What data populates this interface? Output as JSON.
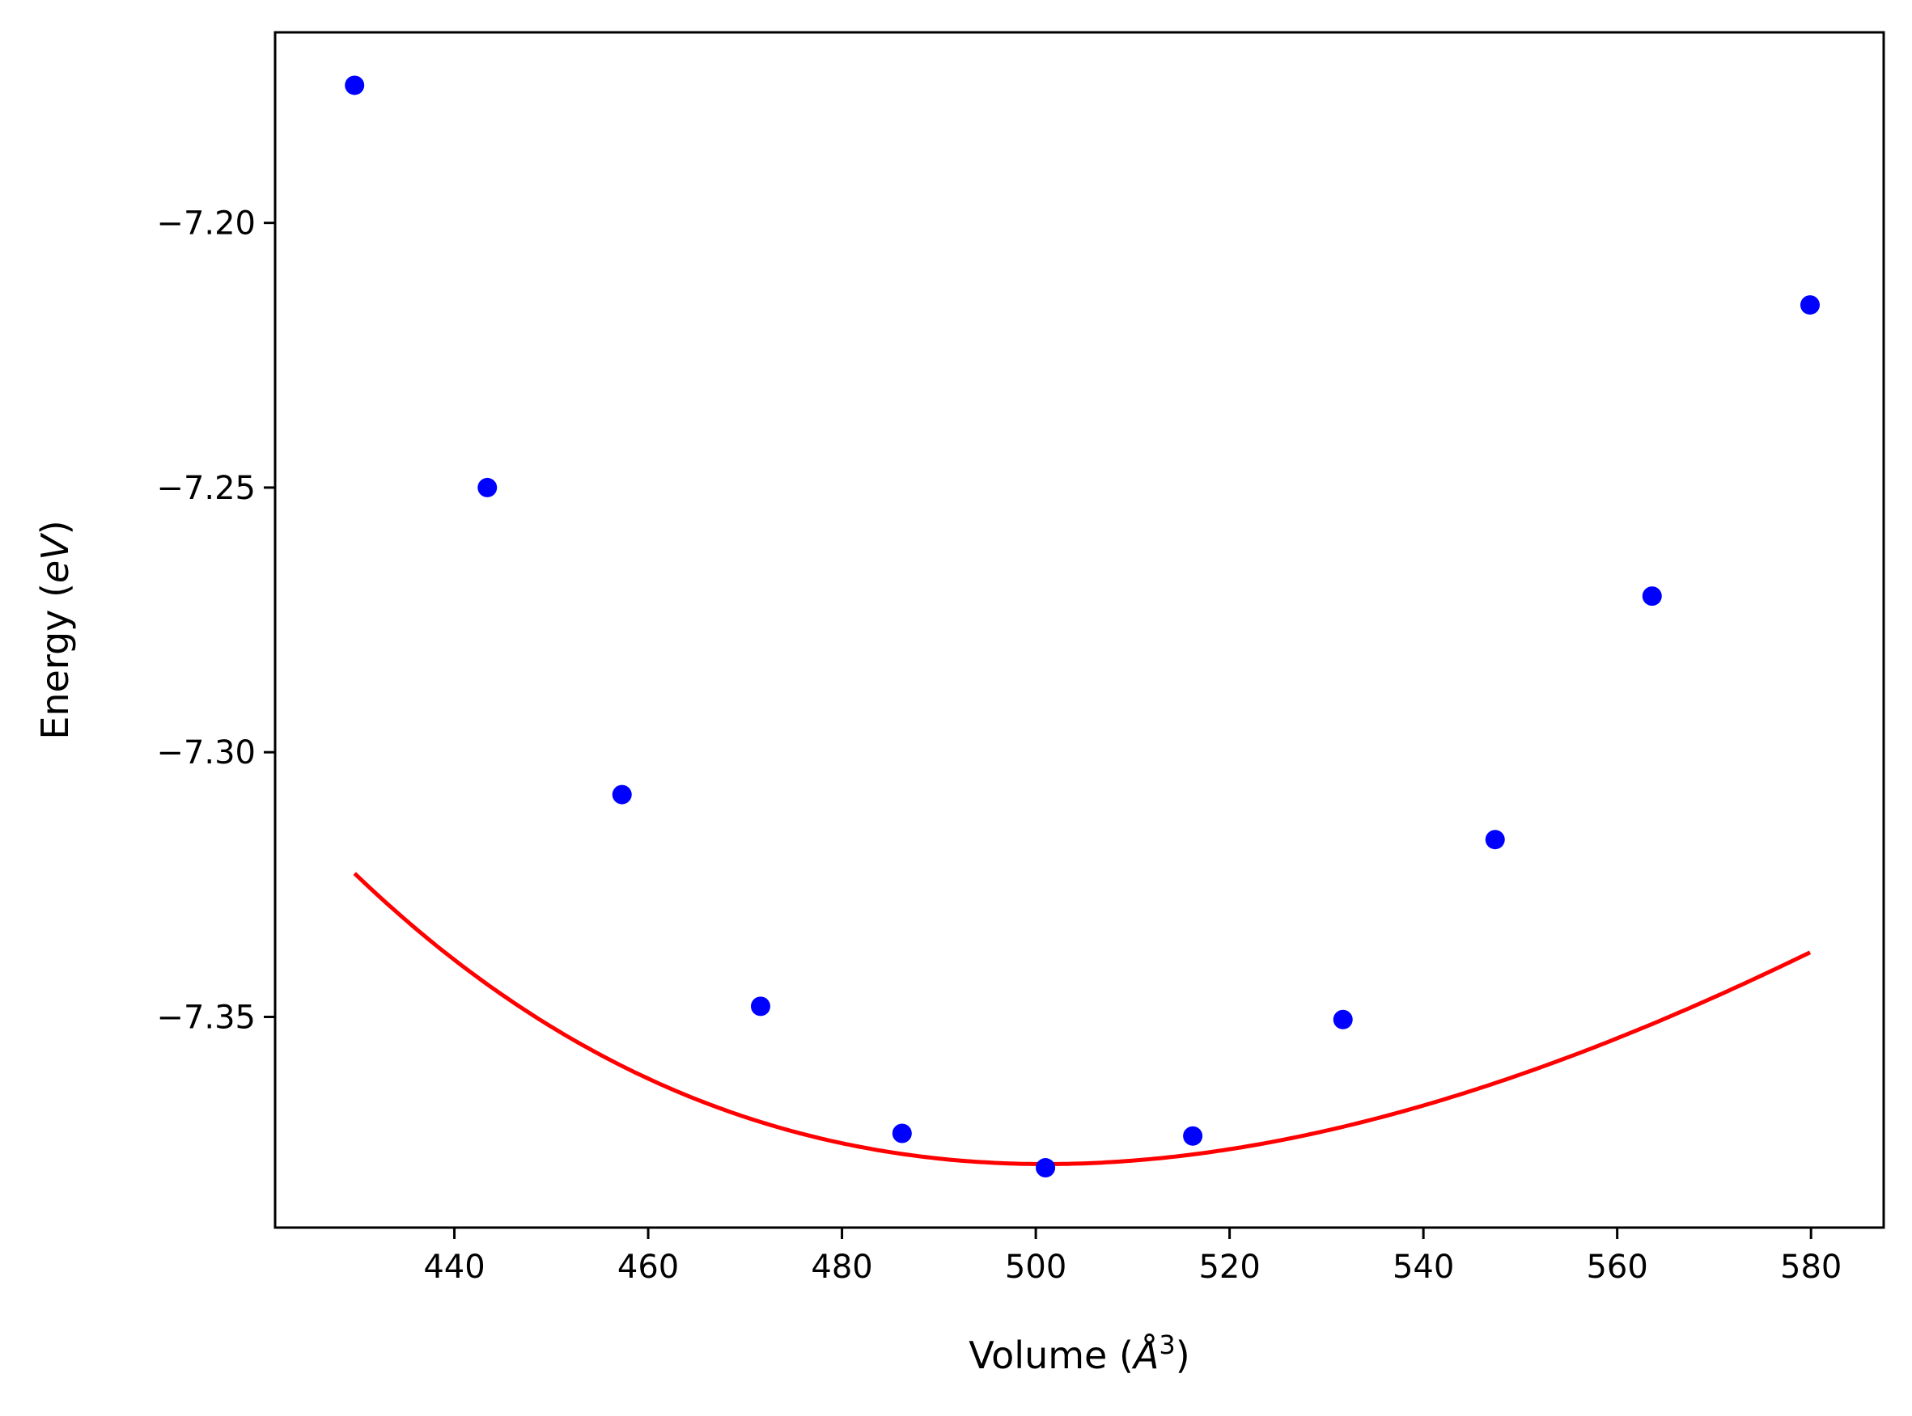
{
  "chart_data": {
    "type": "scatter",
    "title": "",
    "xlabel": "Volume",
    "xlabel_unit": "Å",
    "xlabel_unit_power": "3",
    "ylabel": "Energy",
    "ylabel_unit": "eV",
    "xlim": [
      421.5,
      587.5
    ],
    "ylim": [
      -7.3898,
      -7.164
    ],
    "grid": false,
    "legend": "none",
    "xticks": [
      440,
      460,
      480,
      500,
      520,
      540,
      560,
      580
    ],
    "xtick_labels": [
      "440",
      "460",
      "480",
      "500",
      "520",
      "540",
      "560",
      "580"
    ],
    "yticks": [
      -7.2,
      -7.25,
      -7.3,
      -7.35
    ],
    "ytick_labels": [
      "−7.20",
      "−7.25",
      "−7.30",
      "−7.35"
    ],
    "series": [
      {
        "kind": "points",
        "color": "#0000ff",
        "x": [
          429.7,
          443.4,
          457.3,
          471.6,
          486.2,
          501.0,
          516.2,
          531.7,
          547.4,
          563.6,
          579.9
        ],
        "y": [
          -7.174,
          -7.25,
          -7.308,
          -7.348,
          -7.372,
          -7.3785,
          -7.3725,
          -7.3505,
          -7.3165,
          -7.2705,
          -7.2155
        ]
      },
      {
        "kind": "fit",
        "color": "#ff0000",
        "x": [
          429.7,
          579.9
        ],
        "model": "birch_murnaghan",
        "params": {
          "E0": -7.3778,
          "V0": 501.0,
          "B0_eV_per_A3": 0.0083,
          "B0_prime": 4.2
        }
      }
    ]
  }
}
